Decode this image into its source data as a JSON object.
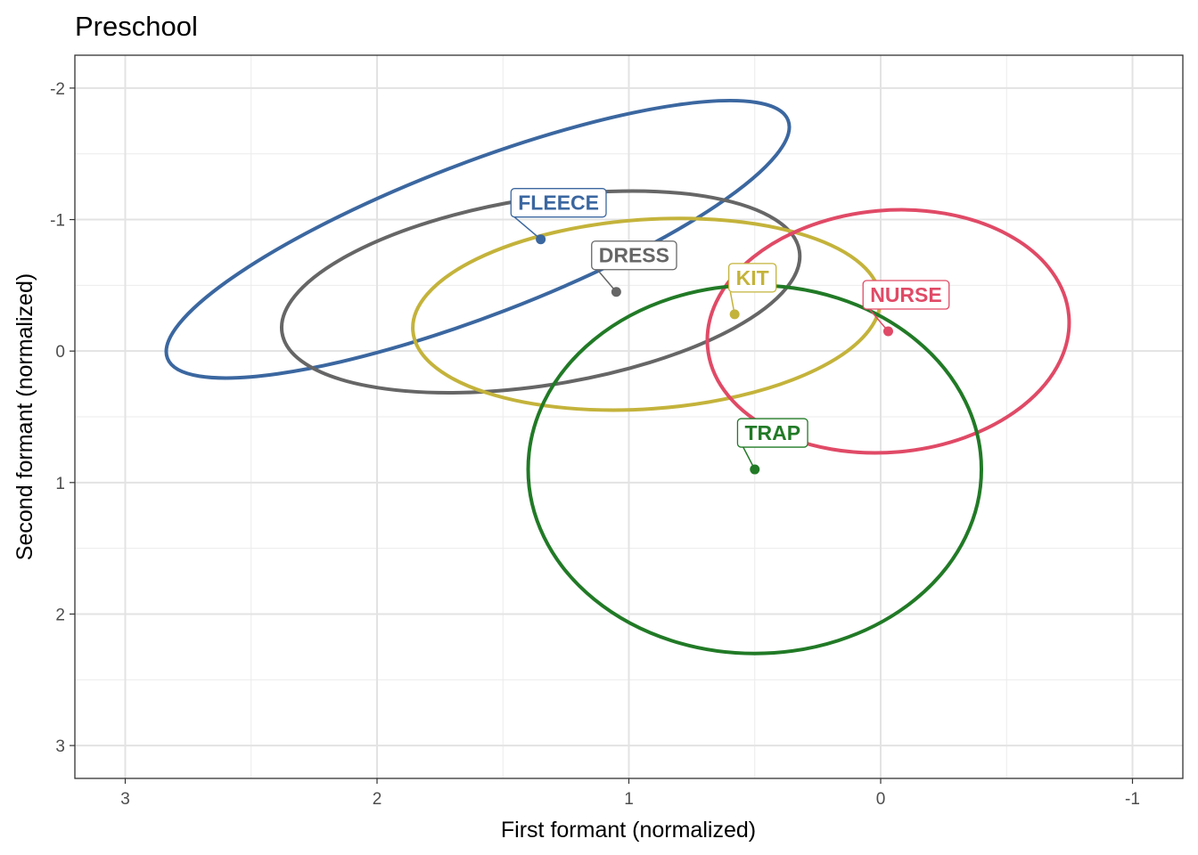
{
  "chart_data": {
    "type": "scatter",
    "title": "Preschool",
    "xlabel": "First formant (normalized)",
    "ylabel": "Second formant (normalized)",
    "x_axis_reversed": true,
    "y_axis_reversed": true,
    "xlim": [
      3.2,
      -1.2
    ],
    "ylim": [
      -2.25,
      3.25
    ],
    "x_ticks": [
      3,
      2,
      1,
      0,
      -1
    ],
    "x_tick_labels": [
      "3",
      "2",
      "1",
      "0",
      "-1"
    ],
    "y_ticks": [
      -2,
      -1,
      0,
      1,
      2,
      3
    ],
    "y_tick_labels": [
      "-2",
      "-1",
      "0",
      "1",
      "2",
      "3"
    ],
    "grid": true,
    "legend": "none",
    "series": [
      {
        "name": "FLEECE",
        "color": "#3b67a0",
        "point": [
          1.35,
          -0.85
        ],
        "ellipse": {
          "center": [
            1.6,
            -0.85
          ],
          "rx": 1.32,
          "ry": 0.58,
          "angle_deg": -21
        }
      },
      {
        "name": "DRESS",
        "color": "#666666",
        "point": [
          1.05,
          -0.45
        ],
        "ellipse": {
          "center": [
            1.35,
            -0.45
          ],
          "rx": 1.04,
          "ry": 0.71,
          "angle_deg": -9
        }
      },
      {
        "name": "KIT",
        "color": "#c4b33b",
        "point": [
          0.58,
          -0.28
        ],
        "ellipse": {
          "center": [
            0.93,
            -0.28
          ],
          "rx": 0.93,
          "ry": 0.72,
          "angle_deg": -4
        }
      },
      {
        "name": "NURSE",
        "color": "#e04a66",
        "point": [
          -0.03,
          -0.15
        ],
        "ellipse": {
          "center": [
            -0.03,
            -0.15
          ],
          "rx": 0.72,
          "ry": 0.92,
          "angle_deg": -5
        }
      },
      {
        "name": "TRAP",
        "color": "#217a26",
        "point": [
          0.5,
          0.9
        ],
        "ellipse": {
          "center": [
            0.5,
            0.9
          ],
          "rx": 0.9,
          "ry": 1.4,
          "angle_deg": 0
        }
      }
    ]
  }
}
